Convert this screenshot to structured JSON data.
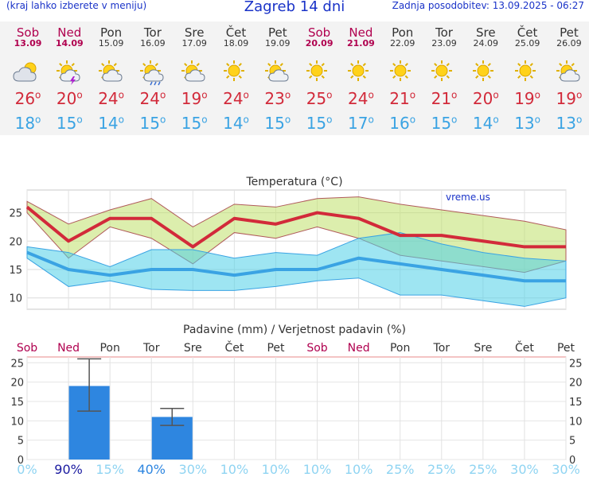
{
  "header": {
    "left": "(kraj lahko izberete v meniju)",
    "title": "Zagreb 14 dni",
    "right": "Zadnja posodobitev: 13.09.2025 - 06:27"
  },
  "days": [
    {
      "name": "Sob",
      "date": "13.09",
      "weekend": true,
      "icon": "partly-cloudy-icon",
      "tmax": "26",
      "tmin": "18"
    },
    {
      "name": "Ned",
      "date": "14.09",
      "weekend": true,
      "icon": "thunderstorm-sun-icon",
      "tmax": "20",
      "tmin": "15"
    },
    {
      "name": "Pon",
      "date": "15.09",
      "weekend": false,
      "icon": "sun-cloud-icon",
      "tmax": "24",
      "tmin": "14"
    },
    {
      "name": "Tor",
      "date": "16.09",
      "weekend": false,
      "icon": "sun-rain-icon",
      "tmax": "24",
      "tmin": "15"
    },
    {
      "name": "Sre",
      "date": "17.09",
      "weekend": false,
      "icon": "sun-cloud-icon",
      "tmax": "19",
      "tmin": "15"
    },
    {
      "name": "Čet",
      "date": "18.09",
      "weekend": false,
      "icon": "sun-icon",
      "tmax": "24",
      "tmin": "14"
    },
    {
      "name": "Pet",
      "date": "19.09",
      "weekend": false,
      "icon": "sun-cloud-icon",
      "tmax": "23",
      "tmin": "15"
    },
    {
      "name": "Sob",
      "date": "20.09",
      "weekend": true,
      "icon": "sun-icon",
      "tmax": "25",
      "tmin": "15"
    },
    {
      "name": "Ned",
      "date": "21.09",
      "weekend": true,
      "icon": "sun-icon",
      "tmax": "24",
      "tmin": "17"
    },
    {
      "name": "Pon",
      "date": "22.09",
      "weekend": false,
      "icon": "sun-icon",
      "tmax": "21",
      "tmin": "16"
    },
    {
      "name": "Tor",
      "date": "23.09",
      "weekend": false,
      "icon": "sun-icon",
      "tmax": "21",
      "tmin": "15"
    },
    {
      "name": "Sre",
      "date": "24.09",
      "weekend": false,
      "icon": "sun-icon",
      "tmax": "20",
      "tmin": "14"
    },
    {
      "name": "Čet",
      "date": "25.09",
      "weekend": false,
      "icon": "sun-icon",
      "tmax": "19",
      "tmin": "13"
    },
    {
      "name": "Pet",
      "date": "26.09",
      "weekend": false,
      "icon": "sun-cloud-icon",
      "tmax": "19",
      "tmin": "13"
    }
  ],
  "colors": {
    "tmax": "#d22a3a",
    "tmin": "#3aa3e3",
    "rain_bar": "#2e86e0",
    "weekend": "#b0004f"
  },
  "chart_data": [
    {
      "type": "line",
      "title": "Temperatura (°C)",
      "watermark": "vreme.us",
      "categories": [
        "13.09",
        "14.09",
        "15.09",
        "16.09",
        "17.09",
        "18.09",
        "19.09",
        "20.09",
        "21.09",
        "22.09",
        "23.09",
        "24.09",
        "25.09",
        "26.09"
      ],
      "ylim": [
        8,
        29
      ],
      "yticks": [
        10,
        15,
        20,
        25
      ],
      "series": [
        {
          "values": [
            26,
            20,
            24,
            24,
            19,
            24,
            23,
            25,
            24,
            21,
            21,
            20,
            19,
            19
          ]
        },
        {
          "values": [
            18,
            15,
            14,
            15,
            15,
            14,
            15,
            15,
            17,
            16,
            15,
            14,
            13,
            13
          ]
        }
      ],
      "max_band_upper": [
        27,
        23,
        25.5,
        27.5,
        22.5,
        26.5,
        26,
        27.5,
        27.8,
        26.5,
        25.5,
        24.5,
        23.5,
        22
      ],
      "max_band_lower": [
        25,
        17,
        22.5,
        20.5,
        16,
        21.5,
        20.5,
        22.5,
        20.5,
        17.5,
        16.5,
        15.5,
        14.5,
        16.5
      ],
      "min_band_upper": [
        19,
        18,
        15.5,
        18.5,
        18.5,
        17,
        18,
        17.5,
        20.5,
        21.5,
        19.5,
        18,
        17,
        16.5
      ],
      "min_band_lower": [
        17,
        12,
        13,
        11.5,
        11.3,
        11.3,
        12,
        13,
        13.5,
        10.5,
        10.5,
        9.5,
        8.5,
        10
      ]
    },
    {
      "type": "bar",
      "title": "Padavine (mm) / Verjetnost padavin (%)",
      "categories": [
        "Sob",
        "Ned",
        "Pon",
        "Tor",
        "Sre",
        "Čet",
        "Pet",
        "Sob",
        "Ned",
        "Pon",
        "Tor",
        "Sre",
        "Čet",
        "Pet"
      ],
      "weekend": [
        true,
        true,
        false,
        false,
        false,
        false,
        false,
        true,
        true,
        false,
        false,
        false,
        false,
        false
      ],
      "values": [
        0,
        19,
        0,
        11,
        0,
        0,
        0,
        0,
        0,
        0,
        0,
        0,
        0,
        0
      ],
      "error_high": [
        null,
        26,
        null,
        13.2,
        null,
        null,
        null,
        null,
        null,
        null,
        null,
        null,
        null,
        null
      ],
      "error_low": [
        null,
        12.5,
        null,
        8.8,
        null,
        null,
        null,
        null,
        null,
        null,
        null,
        null,
        null,
        null
      ],
      "probability": [
        "0%",
        "90%",
        "15%",
        "40%",
        "30%",
        "10%",
        "10%",
        "10%",
        "10%",
        "25%",
        "25%",
        "25%",
        "30%",
        "30%"
      ],
      "ylim": [
        0,
        26.5
      ],
      "yticks": [
        0,
        5,
        10,
        15,
        20,
        25
      ]
    }
  ]
}
